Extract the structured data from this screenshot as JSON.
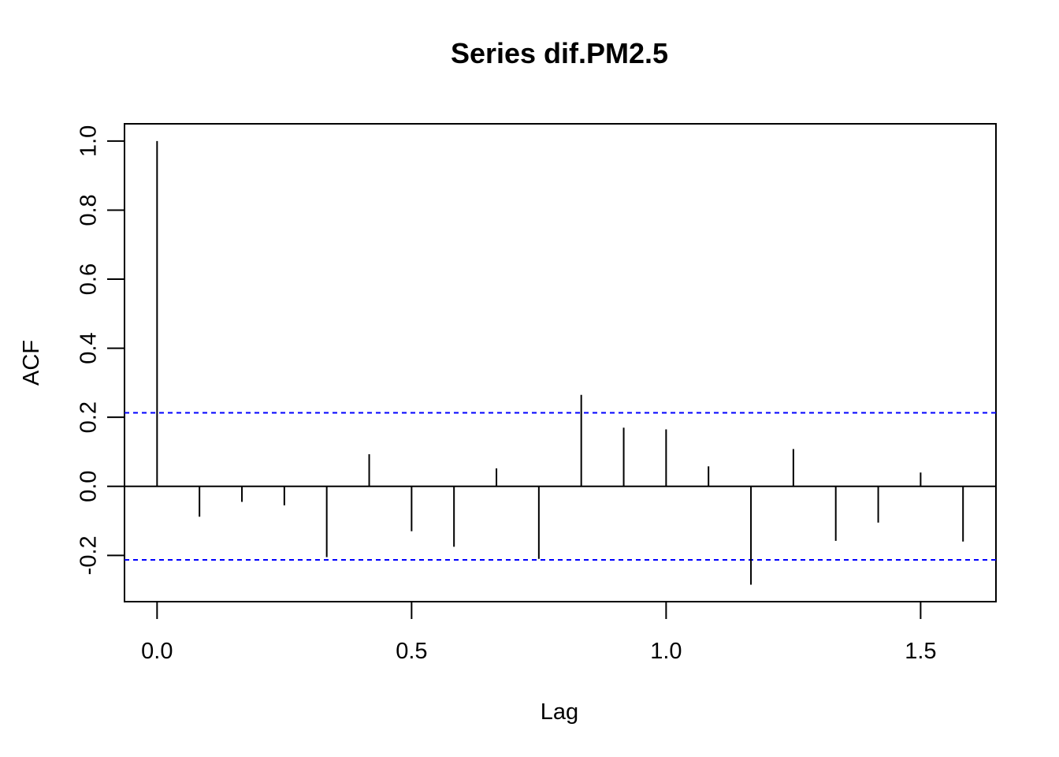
{
  "chart_data": {
    "type": "bar",
    "title": "Series  dif.PM2.5",
    "xlabel": "Lag",
    "ylabel": "ACF",
    "xlim": [
      -0.064,
      1.648
    ],
    "ylim": [
      -0.334,
      1.05
    ],
    "x_ticks": [
      0.0,
      0.5,
      1.0,
      1.5
    ],
    "x_tick_labels": [
      "0.0",
      "0.5",
      "1.0",
      "1.5"
    ],
    "y_ticks": [
      -0.2,
      0.0,
      0.2,
      0.4,
      0.6,
      0.8,
      1.0
    ],
    "y_tick_labels": [
      "-0.2",
      "0.0",
      "0.2",
      "0.4",
      "0.6",
      "0.8",
      "1.0"
    ],
    "confidence_bounds": [
      0.213,
      -0.213
    ],
    "confidence_color": "#0000ff",
    "lags": [
      0.0,
      0.0833,
      0.1667,
      0.25,
      0.3333,
      0.4167,
      0.5,
      0.5833,
      0.6667,
      0.75,
      0.8333,
      0.9167,
      1.0,
      1.0833,
      1.1667,
      1.25,
      1.3333,
      1.4167,
      1.5,
      1.5833
    ],
    "values": [
      1.0,
      -0.088,
      -0.045,
      -0.055,
      -0.205,
      0.093,
      -0.13,
      -0.175,
      0.052,
      -0.21,
      0.265,
      0.17,
      0.165,
      0.058,
      -0.285,
      0.108,
      -0.158,
      -0.105,
      0.04,
      -0.16
    ],
    "grid": false,
    "legend": "none"
  }
}
